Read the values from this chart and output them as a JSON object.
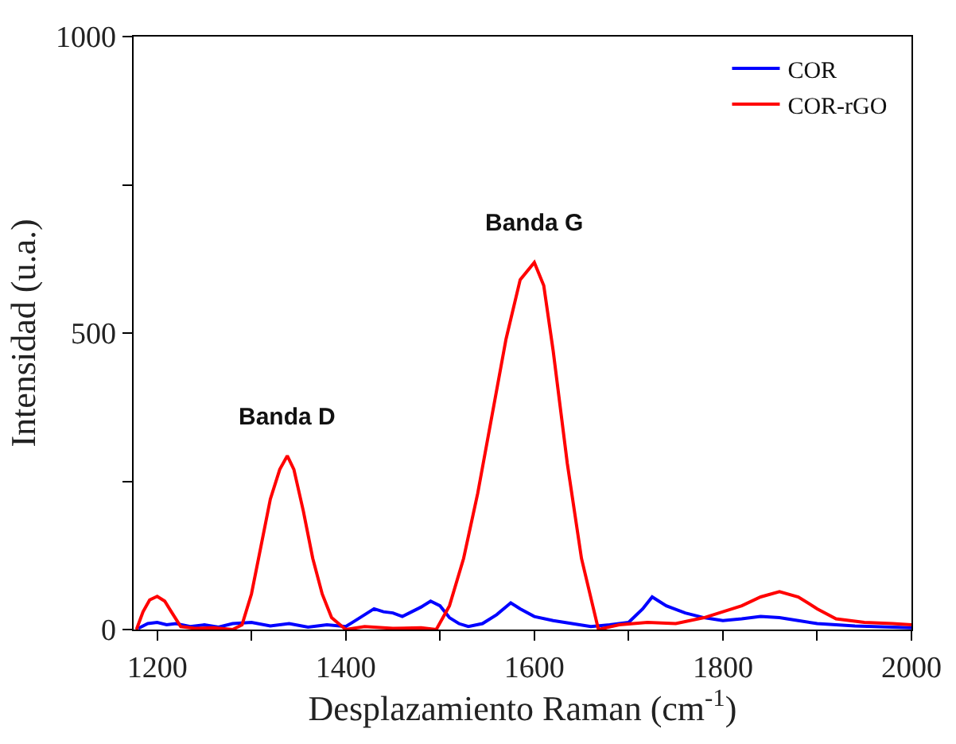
{
  "chart_data": {
    "type": "line",
    "xlabel": "Desplazamiento Raman (cm$^{-1}$)",
    "ylabel": "Intensidad (u.a.)",
    "xlim": [
      1175,
      2000
    ],
    "xticks": [
      1200,
      {
        "value": 1300,
        "label": null
      },
      1400,
      {
        "value": 1500,
        "label": null
      },
      1600,
      {
        "value": 1700,
        "label": null
      },
      1800,
      {
        "value": 1900,
        "label": null
      },
      2000
    ],
    "ylim": [
      0,
      1000
    ],
    "yticks": [
      0,
      {
        "value": 250,
        "label": null
      },
      500,
      {
        "value": 750,
        "label": null
      },
      1000
    ],
    "grid": false,
    "legend": "top right",
    "marker": "none",
    "line_style": "solid",
    "series": [
      {
        "name": "COR",
        "color": "#0000ff",
        "x": [
          1180,
          1190,
          1200,
          1210,
          1220,
          1235,
          1250,
          1265,
          1280,
          1300,
          1320,
          1340,
          1360,
          1380,
          1400,
          1410,
          1420,
          1430,
          1440,
          1450,
          1460,
          1470,
          1480,
          1490,
          1500,
          1510,
          1520,
          1530,
          1545,
          1560,
          1575,
          1585,
          1600,
          1620,
          1640,
          1660,
          1680,
          1700,
          1715,
          1725,
          1740,
          1760,
          1780,
          1800,
          1820,
          1840,
          1860,
          1880,
          1900,
          1920,
          1940,
          1960,
          1980,
          2000
        ],
        "values": [
          2,
          10,
          12,
          8,
          10,
          5,
          8,
          4,
          10,
          12,
          6,
          10,
          4,
          8,
          5,
          15,
          25,
          35,
          30,
          28,
          22,
          30,
          38,
          48,
          40,
          20,
          10,
          5,
          10,
          25,
          45,
          35,
          22,
          15,
          10,
          5,
          8,
          12,
          35,
          55,
          40,
          28,
          20,
          15,
          18,
          22,
          20,
          15,
          10,
          8,
          6,
          5,
          4,
          3
        ]
      },
      {
        "name": "COR-rGO",
        "color": "#ff0000",
        "x": [
          1178,
          1185,
          1192,
          1200,
          1208,
          1215,
          1225,
          1240,
          1260,
          1280,
          1290,
          1300,
          1310,
          1320,
          1330,
          1338,
          1345,
          1355,
          1365,
          1375,
          1385,
          1400,
          1420,
          1450,
          1480,
          1496,
          1510,
          1525,
          1540,
          1555,
          1570,
          1585,
          1600,
          1610,
          1620,
          1635,
          1650,
          1668,
          1690,
          1720,
          1750,
          1780,
          1800,
          1820,
          1840,
          1860,
          1880,
          1900,
          1920,
          1950,
          1980,
          2000
        ],
        "values": [
          0,
          30,
          50,
          56,
          48,
          30,
          5,
          2,
          3,
          0,
          8,
          60,
          140,
          220,
          270,
          293,
          270,
          200,
          120,
          60,
          20,
          0,
          5,
          2,
          3,
          0,
          40,
          120,
          230,
          360,
          490,
          590,
          619,
          580,
          470,
          280,
          120,
          0,
          8,
          12,
          10,
          20,
          30,
          40,
          55,
          64,
          55,
          35,
          18,
          12,
          10,
          8
        ]
      }
    ],
    "annotations": [
      {
        "text": "Banda D",
        "x": 1338,
        "y": 293
      },
      {
        "text": "Banda G",
        "x": 1600,
        "y": 619
      }
    ]
  }
}
